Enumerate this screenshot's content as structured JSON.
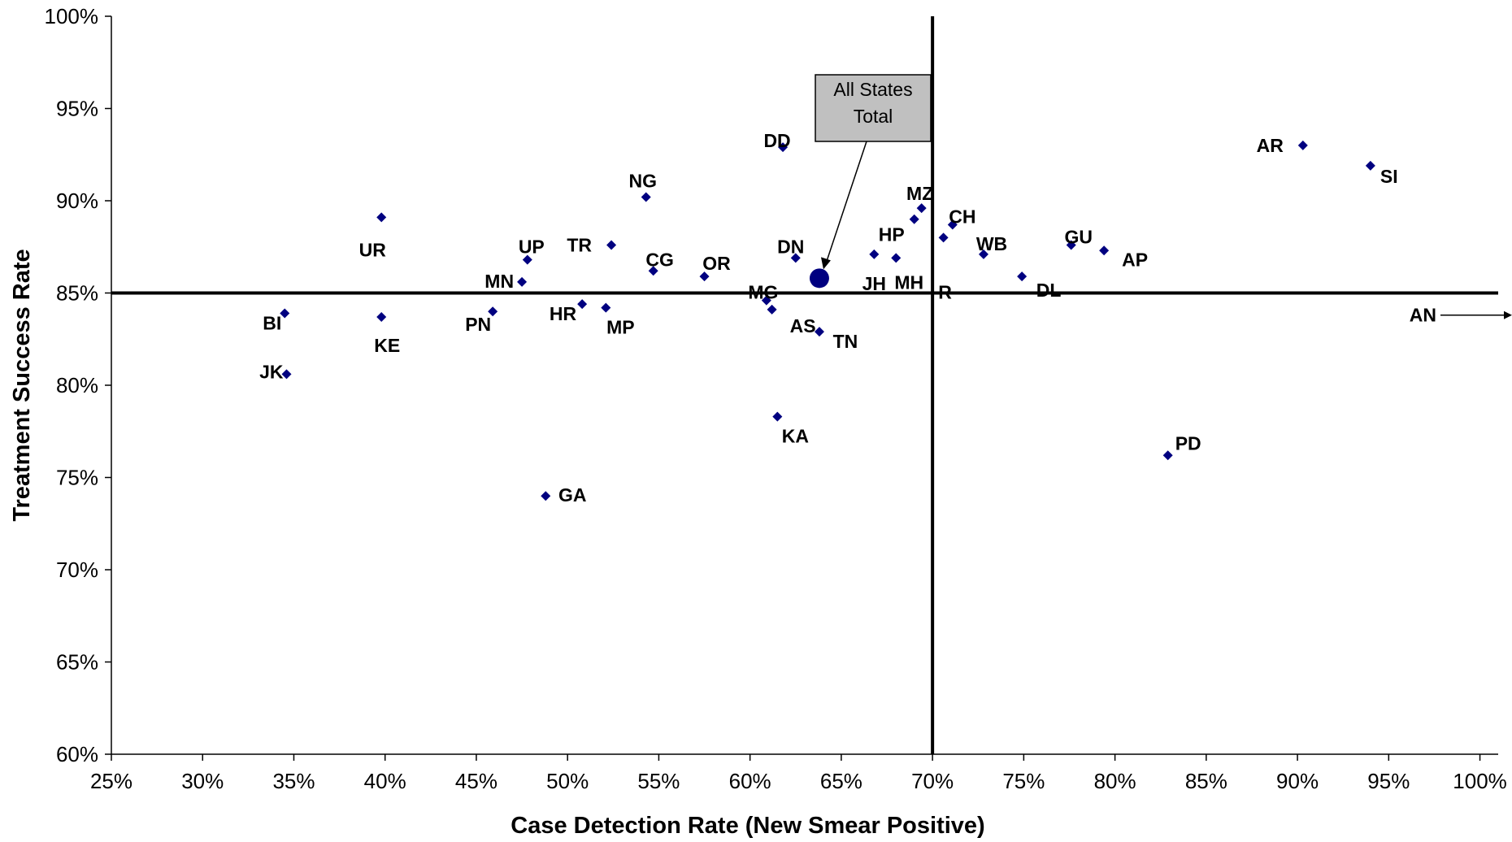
{
  "chart_data": {
    "type": "scatter",
    "xlabel": "Case Detection Rate (New Smear Positive)",
    "ylabel": "Treatment Success Rate",
    "xlim": [
      25,
      101
    ],
    "ylim": [
      60,
      100
    ],
    "x_ticks": [
      "25%",
      "30%",
      "35%",
      "40%",
      "45%",
      "50%",
      "55%",
      "60%",
      "65%",
      "70%",
      "75%",
      "80%",
      "85%",
      "90%",
      "95%",
      "100%"
    ],
    "y_ticks": [
      "60%",
      "65%",
      "70%",
      "75%",
      "80%",
      "85%",
      "90%",
      "95%",
      "100%"
    ],
    "grid": false,
    "legend": "none",
    "reference_lines": {
      "x": 70,
      "y": 85
    },
    "marker_color": "#000080",
    "points": [
      {
        "label": "DD",
        "x": 61.8,
        "y": 92.9
      },
      {
        "label": "AR",
        "x": 90.3,
        "y": 93.0
      },
      {
        "label": "SI",
        "x": 94.0,
        "y": 91.9
      },
      {
        "label": "NG",
        "x": 54.3,
        "y": 90.2
      },
      {
        "label": "UR",
        "x": 39.8,
        "y": 89.1
      },
      {
        "label": "MZ",
        "x": 69.4,
        "y": 89.6
      },
      {
        "label": "CH",
        "x": 71.1,
        "y": 88.7
      },
      {
        "label": "HP",
        "x": 69.0,
        "y": 89.0
      },
      {
        "label": "R",
        "x": 70.6,
        "y": 88.0
      },
      {
        "label": "WB",
        "x": 72.8,
        "y": 87.1
      },
      {
        "label": "GU",
        "x": 77.6,
        "y": 87.6
      },
      {
        "label": "AP",
        "x": 79.4,
        "y": 87.3
      },
      {
        "label": "UP",
        "x": 47.8,
        "y": 86.8
      },
      {
        "label": "TR",
        "x": 52.4,
        "y": 87.6
      },
      {
        "label": "CG",
        "x": 54.7,
        "y": 86.2
      },
      {
        "label": "OR",
        "x": 57.5,
        "y": 85.9
      },
      {
        "label": "DN",
        "x": 62.5,
        "y": 86.9
      },
      {
        "label": "JH",
        "x": 66.8,
        "y": 87.1
      },
      {
        "label": "MH",
        "x": 68.0,
        "y": 86.9
      },
      {
        "label": "DL",
        "x": 74.9,
        "y": 85.9
      },
      {
        "label": "MN",
        "x": 47.5,
        "y": 85.6
      },
      {
        "label": "MG",
        "x": 60.9,
        "y": 84.6
      },
      {
        "label": "AS",
        "x": 61.2,
        "y": 84.1
      },
      {
        "label": "HR",
        "x": 50.8,
        "y": 84.4
      },
      {
        "label": "MP",
        "x": 52.1,
        "y": 84.2
      },
      {
        "label": "PN",
        "x": 45.9,
        "y": 84.0
      },
      {
        "label": "BI",
        "x": 34.5,
        "y": 83.9
      },
      {
        "label": "KE",
        "x": 39.8,
        "y": 83.7
      },
      {
        "label": "TN",
        "x": 63.8,
        "y": 82.9
      },
      {
        "label": "JK",
        "x": 34.6,
        "y": 80.6
      },
      {
        "label": "KA",
        "x": 61.5,
        "y": 78.3
      },
      {
        "label": "PD",
        "x": 82.9,
        "y": 76.2
      },
      {
        "label": "GA",
        "x": 48.8,
        "y": 74.0
      }
    ],
    "highlight": {
      "label": "All States Total",
      "label_lines": [
        "All States",
        "Total"
      ],
      "x": 63.8,
      "y": 85.8
    },
    "offscale_point": {
      "label": "AN"
    }
  }
}
